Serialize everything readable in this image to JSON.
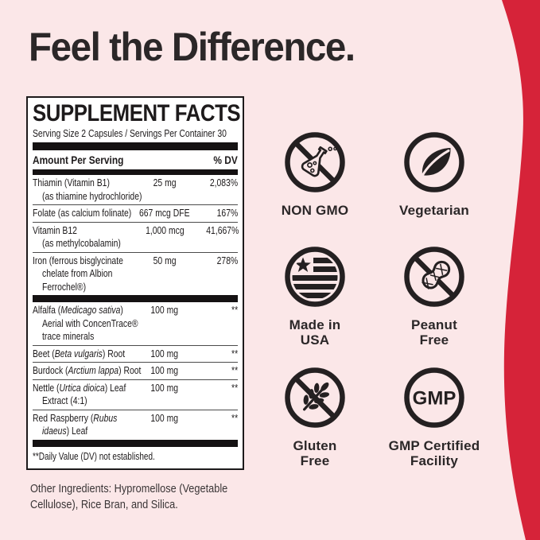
{
  "page": {
    "bg_color": "#fbe7e8",
    "accent_red": "#d62339",
    "ink": "#242021",
    "panel_bg": "#ffffff"
  },
  "heading": {
    "text": "Feel the Difference."
  },
  "supplement_facts": {
    "title": "SUPPLEMENT FACTS",
    "serving_line": "Serving Size 2 Capsules / Servings Per Container 30",
    "header": {
      "amount_label": "Amount Per Serving",
      "dv_label": "% DV"
    },
    "rows": [
      {
        "name_lines": [
          "Thiamin (Vitamin B1)",
          "(as thiamine hydrochloride)"
        ],
        "amount": "25 mg",
        "dv": "2,083%",
        "sep_after": "thin"
      },
      {
        "name_lines": [
          "Folate (as calcium folinate)"
        ],
        "amount": "667 mcg DFE",
        "dv": "167%",
        "sep_after": "thin"
      },
      {
        "name_lines": [
          "Vitamin B12",
          "(as methylcobalamin)"
        ],
        "amount": "1,000 mcg",
        "dv": "41,667%",
        "sep_after": "thin"
      },
      {
        "name_lines": [
          "Iron (ferrous bisglycinate",
          "chelate from Albion",
          "Ferrochel®)"
        ],
        "amount": "50 mg",
        "dv": "278%",
        "sep_after": "thick"
      },
      {
        "name_lines": [
          "Alfalfa (*Medicago sativa*)",
          "Aerial with ConcenTrace®",
          "trace minerals"
        ],
        "amount": "100 mg",
        "dv": "**",
        "sep_after": "thin"
      },
      {
        "name_lines": [
          "Beet (*Beta vulgaris*) Root"
        ],
        "amount": "100 mg",
        "dv": "**",
        "sep_after": "thin"
      },
      {
        "name_lines": [
          "Burdock (*Arctium lappa*) Root"
        ],
        "amount": "100 mg",
        "dv": "**",
        "sep_after": "thin"
      },
      {
        "name_lines": [
          "Nettle (*Urtica dioica*) Leaf",
          "Extract (4:1)"
        ],
        "amount": "100 mg",
        "dv": "**",
        "sep_after": "thin"
      },
      {
        "name_lines": [
          "Red Raspberry (*Rubus*",
          "*idaeus*) Leaf"
        ],
        "amount": "100 mg",
        "dv": "**",
        "sep_after": "thick"
      }
    ],
    "footnote": "**Daily Value (DV) not established."
  },
  "other_ingredients": {
    "text": "Other Ingredients: Hypromellose (Vegetable\nCellulose), Rice Bran, and Silica."
  },
  "badges": {
    "items": [
      {
        "icon": "no-gmo-flask-icon",
        "label": "NON GMO"
      },
      {
        "icon": "vegetarian-leaf-icon",
        "label": "Vegetarian"
      },
      {
        "icon": "usa-flag-icon",
        "label": "Made in\nUSA"
      },
      {
        "icon": "no-peanut-icon",
        "label": "Peanut\nFree"
      },
      {
        "icon": "no-wheat-icon",
        "label": "Gluten\nFree"
      },
      {
        "icon": "gmp-circle-icon",
        "label": "GMP Certified\nFacility",
        "icon_text": "GMP"
      }
    ]
  }
}
